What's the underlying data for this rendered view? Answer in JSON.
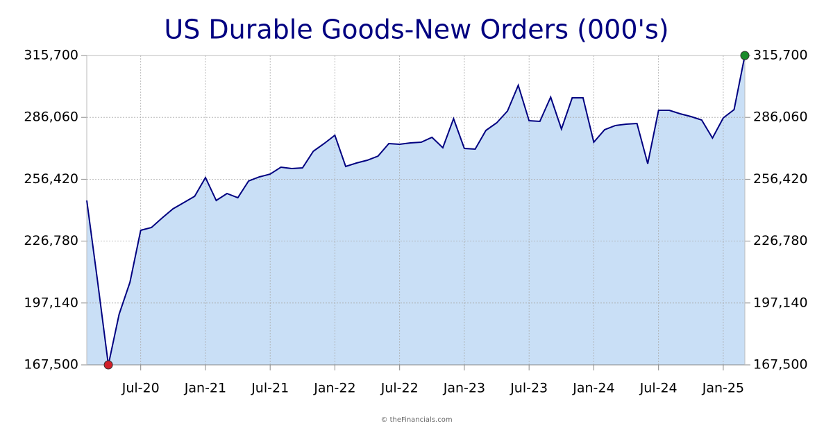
{
  "chart_data": {
    "type": "area-line",
    "title": "US Durable Goods-New Orders (000's)",
    "credit": "© theFinancials.com",
    "categories": [
      null,
      null,
      null,
      null,
      null,
      "Jul-20",
      null,
      null,
      null,
      null,
      null,
      "Jan-21",
      null,
      null,
      null,
      null,
      null,
      "Jul-21",
      null,
      null,
      null,
      null,
      null,
      "Jan-22",
      null,
      null,
      null,
      null,
      null,
      "Jul-22",
      null,
      null,
      null,
      null,
      null,
      "Jan-23",
      null,
      null,
      null,
      null,
      null,
      "Jul-23",
      null,
      null,
      null,
      null,
      null,
      "Jan-24",
      null,
      null,
      null,
      null,
      null,
      "Jul-24",
      null,
      null,
      null,
      null,
      null,
      "Jan-25",
      null,
      null
    ],
    "values": [
      246250,
      207700,
      167500,
      191760,
      207040,
      231970,
      233300,
      237950,
      242270,
      245260,
      248250,
      257220,
      246250,
      249580,
      247580,
      255560,
      257550,
      258880,
      262210,
      261540,
      261870,
      269850,
      273500,
      277500,
      262540,
      264200,
      265530,
      267520,
      273500,
      273170,
      273840,
      274170,
      276500,
      271510,
      285470,
      271180,
      270850,
      279820,
      283470,
      289120,
      301420,
      284470,
      284140,
      295770,
      280480,
      295440,
      295440,
      274170,
      280150,
      282140,
      282810,
      283140,
      263870,
      289450,
      289450,
      287790,
      286460,
      284800,
      276160,
      285800,
      289790,
      315700
    ],
    "color": "#000080",
    "fill_color": "#c9dff6",
    "min_marker_color": "#d0202a",
    "max_marker_color": "#1a8a2a",
    "ylim": [
      167500,
      315700
    ],
    "yticks": [
      {
        "value": 167500,
        "label": "167,500"
      },
      {
        "value": 197140,
        "label": "197,140"
      },
      {
        "value": 226780,
        "label": "226,780"
      },
      {
        "value": 256420,
        "label": "256,420"
      },
      {
        "value": 286060,
        "label": "286,060"
      },
      {
        "value": 315700,
        "label": "315,700"
      }
    ],
    "grid": true
  }
}
